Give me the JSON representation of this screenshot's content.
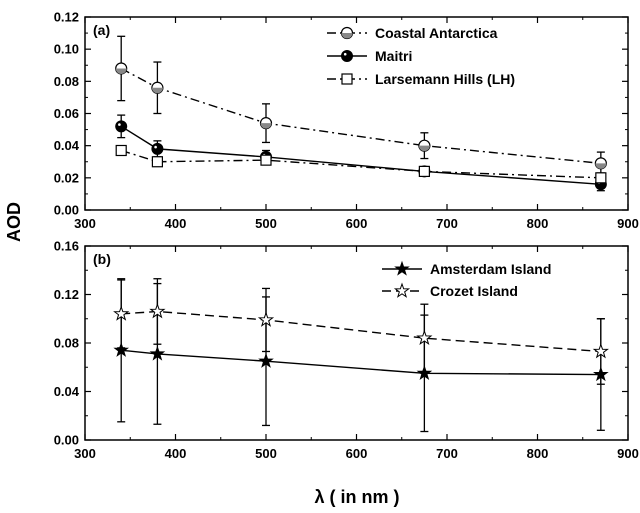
{
  "chart_data": [
    {
      "type": "line",
      "panel_label": "(a)",
      "xlabel": "",
      "ylabel": "AOD",
      "xlim": [
        300,
        900
      ],
      "ylim": [
        0.0,
        0.12
      ],
      "xticks": [
        "300",
        "400",
        "500",
        "600",
        "700",
        "800",
        "900"
      ],
      "yticks": [
        "0.00",
        "0.02",
        "0.04",
        "0.06",
        "0.08",
        "0.10",
        "0.12"
      ],
      "legend_position": "top-right",
      "grid": false,
      "series": [
        {
          "name": "Coastal Antarctica",
          "line": "dash-dot",
          "marker": "half-filled-circle",
          "x": [
            340,
            380,
            500,
            675,
            870
          ],
          "values": [
            0.088,
            0.076,
            0.054,
            0.04,
            0.029
          ],
          "error": [
            0.02,
            0.016,
            0.012,
            0.008,
            0.007
          ]
        },
        {
          "name": "Maitri",
          "line": "solid",
          "marker": "filled-circle",
          "x": [
            340,
            380,
            500,
            675,
            870
          ],
          "values": [
            0.052,
            0.038,
            0.033,
            0.024,
            0.016
          ],
          "error": [
            0.007,
            0.005,
            0.004,
            0.003,
            0.004
          ]
        },
        {
          "name": "Larsemann Hills (LH)",
          "line": "dash-dot",
          "marker": "open-square",
          "x": [
            340,
            380,
            500,
            675,
            870
          ],
          "values": [
            0.037,
            0.03,
            0.031,
            0.024,
            0.02
          ],
          "error": [
            0,
            0,
            0.002,
            0.002,
            0.003
          ]
        }
      ]
    },
    {
      "type": "line",
      "panel_label": "(b)",
      "xlabel": "λ ( in nm )",
      "ylabel": "AOD",
      "xlim": [
        300,
        900
      ],
      "ylim": [
        0.0,
        0.16
      ],
      "xticks": [
        "300",
        "400",
        "500",
        "600",
        "700",
        "800",
        "900"
      ],
      "yticks": [
        "0.00",
        "0.04",
        "0.08",
        "0.12",
        "0.16"
      ],
      "legend_position": "top-right",
      "grid": false,
      "series": [
        {
          "name": "Amsterdam Island",
          "line": "solid",
          "marker": "filled-star",
          "x": [
            340,
            380,
            500,
            675,
            870
          ],
          "values": [
            0.074,
            0.071,
            0.065,
            0.055,
            0.054
          ],
          "error": [
            0.059,
            0.058,
            0.053,
            0.048,
            0.046
          ]
        },
        {
          "name": "Crozet Island",
          "line": "dashed",
          "marker": "open-star",
          "x": [
            340,
            380,
            500,
            675,
            870
          ],
          "values": [
            0.104,
            0.106,
            0.099,
            0.084,
            0.073
          ],
          "error": [
            0.028,
            0.027,
            0.026,
            0.028,
            0.027
          ]
        }
      ]
    }
  ]
}
